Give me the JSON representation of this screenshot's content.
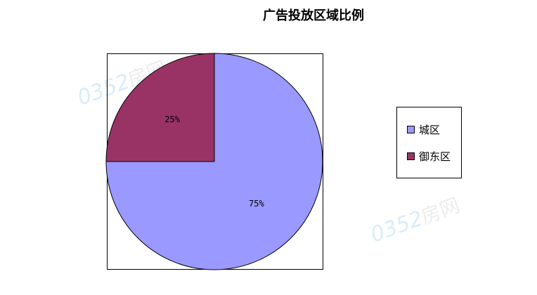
{
  "chart_data": {
    "type": "pie",
    "title": "广告投放区域比例",
    "slices": [
      {
        "label": "城区",
        "value": 75,
        "data_label": "75%",
        "color": "#9999FF"
      },
      {
        "label": "御东区",
        "value": 25,
        "data_label": "25%",
        "color": "#993366"
      }
    ],
    "legend_placement": "right"
  },
  "watermark": "0352房网"
}
